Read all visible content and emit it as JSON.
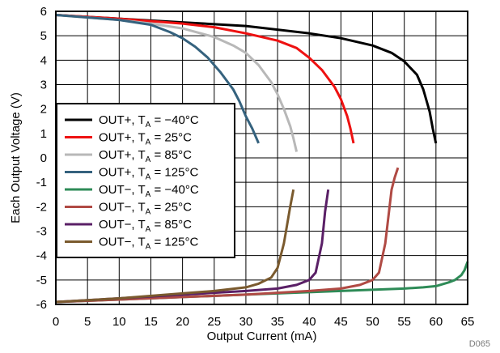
{
  "chart_data": {
    "type": "line",
    "title": "",
    "xlabel": "Output Current (mA)",
    "ylabel": "Each Output Voltage (V)",
    "xlim": [
      0,
      65
    ],
    "ylim": [
      -6,
      6
    ],
    "x_ticks": [
      "0",
      "5",
      "10",
      "15",
      "20",
      "25",
      "30",
      "35",
      "40",
      "45",
      "50",
      "55",
      "60",
      "65"
    ],
    "y_ticks": [
      "6",
      "5",
      "4",
      "3",
      "2",
      "1",
      "0",
      "-1",
      "-2",
      "-3",
      "-4",
      "-5",
      "-6"
    ],
    "grid": true,
    "legend_position": "left",
    "figure_code": "D065",
    "series": [
      {
        "name": "OUT+, TA = −40°C",
        "legend_main": "OUT+, T",
        "legend_sub": "A",
        "legend_rest": " = −40°C",
        "color": "#000000",
        "x": [
          0,
          10,
          20,
          30,
          40,
          45,
          50,
          53,
          55,
          57,
          58,
          59,
          59.5,
          60
        ],
        "y": [
          5.85,
          5.7,
          5.55,
          5.4,
          5.1,
          4.9,
          4.6,
          4.3,
          3.95,
          3.4,
          2.8,
          1.9,
          1.2,
          0.6
        ]
      },
      {
        "name": "OUT+, TA = 25°C",
        "legend_main": "OUT+, T",
        "legend_sub": "A",
        "legend_rest": " = 25°C",
        "color": "#ee1111",
        "x": [
          0,
          10,
          20,
          25,
          30,
          35,
          38,
          40,
          42,
          44,
          45,
          46,
          46.5,
          47
        ],
        "y": [
          5.85,
          5.7,
          5.5,
          5.35,
          5.1,
          4.8,
          4.5,
          4.1,
          3.6,
          2.9,
          2.4,
          1.7,
          1.2,
          0.6
        ]
      },
      {
        "name": "OUT+, TA = 85°C",
        "legend_main": "OUT+, T",
        "legend_sub": "A",
        "legend_rest": " = 85°C",
        "color": "#b8b8b8",
        "x": [
          0,
          10,
          15,
          20,
          25,
          28,
          30,
          32,
          34,
          35,
          36,
          37,
          37.5,
          38
        ],
        "y": [
          5.85,
          5.65,
          5.5,
          5.3,
          4.95,
          4.6,
          4.3,
          3.8,
          3.1,
          2.6,
          2.0,
          1.3,
          0.8,
          0.25
        ]
      },
      {
        "name": "OUT+, TA = 125°C",
        "legend_main": "OUT+, T",
        "legend_sub": "A",
        "legend_rest": " = 125°C",
        "color": "#35627e",
        "x": [
          0,
          10,
          15,
          18,
          20,
          22,
          24,
          26,
          28,
          29,
          30,
          31,
          32
        ],
        "y": [
          5.85,
          5.65,
          5.45,
          5.15,
          4.9,
          4.55,
          4.1,
          3.5,
          2.8,
          2.3,
          1.7,
          1.2,
          0.6
        ]
      },
      {
        "name": "OUT−, TA = −40°C",
        "legend_main": "OUT−, T",
        "legend_sub": "A",
        "legend_rest": " = −40°C",
        "color": "#2e8b57",
        "x": [
          0,
          10,
          20,
          30,
          40,
          50,
          55,
          58,
          60,
          62,
          63,
          64,
          64.5,
          65
        ],
        "y": [
          -5.9,
          -5.8,
          -5.7,
          -5.6,
          -5.5,
          -5.4,
          -5.35,
          -5.3,
          -5.25,
          -5.1,
          -5.0,
          -4.8,
          -4.6,
          -4.25
        ]
      },
      {
        "name": "OUT−, TA = 25°C",
        "legend_main": "OUT−, T",
        "legend_sub": "A",
        "legend_rest": " = 25°C",
        "color": "#b04a44",
        "x": [
          0,
          10,
          20,
          30,
          40,
          45,
          48,
          50,
          51,
          52,
          53,
          53.5,
          54
        ],
        "y": [
          -5.9,
          -5.8,
          -5.7,
          -5.6,
          -5.45,
          -5.35,
          -5.2,
          -5.0,
          -4.7,
          -3.5,
          -1.3,
          -0.8,
          -0.4
        ]
      },
      {
        "name": "OUT−, TA = 85°C",
        "legend_main": "OUT−, T",
        "legend_sub": "A",
        "legend_rest": " = 85°C",
        "color": "#5a1f66",
        "x": [
          0,
          10,
          20,
          30,
          35,
          38,
          40,
          41,
          42,
          42.5,
          43
        ],
        "y": [
          -5.9,
          -5.75,
          -5.6,
          -5.45,
          -5.35,
          -5.2,
          -5.0,
          -4.7,
          -3.5,
          -2.2,
          -1.3
        ]
      },
      {
        "name": "OUT−, TA = 125°C",
        "legend_main": "OUT−, T",
        "legend_sub": "A",
        "legend_rest": " = 125°C",
        "color": "#7a5a2e",
        "x": [
          0,
          10,
          20,
          25,
          30,
          32,
          34,
          35,
          36,
          37,
          37.5
        ],
        "y": [
          -5.9,
          -5.75,
          -5.55,
          -5.45,
          -5.3,
          -5.15,
          -4.9,
          -4.5,
          -3.5,
          -2.0,
          -1.3
        ]
      }
    ]
  }
}
